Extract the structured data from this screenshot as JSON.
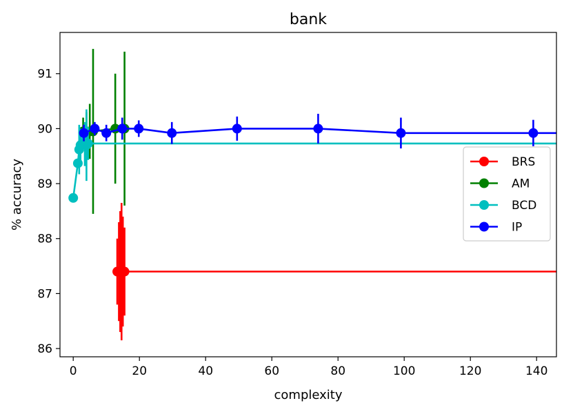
{
  "chart_data": {
    "type": "line",
    "title": "bank",
    "xlabel": "complexity",
    "ylabel": "% accuracy",
    "xlim": [
      -4,
      146
    ],
    "ylim": [
      85.85,
      91.75
    ],
    "xticks": [
      0,
      20,
      40,
      60,
      80,
      100,
      120,
      140
    ],
    "yticks": [
      86,
      87,
      88,
      89,
      90,
      91
    ],
    "grid": false,
    "legend_position": "center-right",
    "series": [
      {
        "name": "BRS",
        "color": "#ff0000",
        "points": [
          {
            "x": 13.3,
            "y": 87.4,
            "err": 0.6
          },
          {
            "x": 13.8,
            "y": 87.4,
            "err": 0.9
          },
          {
            "x": 14.2,
            "y": 87.4,
            "err": 1.1
          },
          {
            "x": 14.6,
            "y": 87.4,
            "err": 1.25
          },
          {
            "x": 15.0,
            "y": 87.4,
            "err": 1.0
          },
          {
            "x": 15.5,
            "y": 87.4,
            "err": 0.8
          }
        ],
        "extend_to_x": 146
      },
      {
        "name": "AM",
        "color": "#008000",
        "points": [
          {
            "x": 3.0,
            "y": 89.95,
            "err": 0.25
          },
          {
            "x": 4.0,
            "y": 89.95,
            "err": 0.35
          },
          {
            "x": 5.0,
            "y": 89.95,
            "err": 0.5
          },
          {
            "x": 6.0,
            "y": 89.95,
            "err": 1.5
          },
          {
            "x": 12.7,
            "y": 90.0,
            "err": 1.0
          },
          {
            "x": 15.5,
            "y": 90.0,
            "err": 1.4
          }
        ],
        "extend_to_x": 16
      },
      {
        "name": "BCD",
        "color": "#00bfbf",
        "points": [
          {
            "x": 0.0,
            "y": 88.74,
            "err": 0.0
          },
          {
            "x": 1.4,
            "y": 89.37,
            "err": 0.05
          },
          {
            "x": 1.8,
            "y": 89.62,
            "err": 0.45
          },
          {
            "x": 2.2,
            "y": 89.7,
            "err": 0.3
          },
          {
            "x": 2.8,
            "y": 89.74,
            "err": 0.15
          },
          {
            "x": 3.5,
            "y": 89.72,
            "err": 0.4
          },
          {
            "x": 4.0,
            "y": 89.7,
            "err": 0.65
          },
          {
            "x": 4.5,
            "y": 89.73,
            "err": 0.3
          }
        ],
        "extend_to_x": 146
      },
      {
        "name": "IP",
        "color": "#0000ff",
        "points": [
          {
            "x": 3.2,
            "y": 89.92,
            "err": 0.15
          },
          {
            "x": 6.5,
            "y": 90.0,
            "err": 0.12
          },
          {
            "x": 10.0,
            "y": 89.92,
            "err": 0.15
          },
          {
            "x": 14.8,
            "y": 90.0,
            "err": 0.2
          },
          {
            "x": 19.8,
            "y": 90.0,
            "err": 0.15
          },
          {
            "x": 29.8,
            "y": 89.92,
            "err": 0.2
          },
          {
            "x": 49.5,
            "y": 90.0,
            "err": 0.22
          },
          {
            "x": 74.0,
            "y": 90.0,
            "err": 0.27
          },
          {
            "x": 99.0,
            "y": 89.92,
            "err": 0.28
          },
          {
            "x": 139.0,
            "y": 89.92,
            "err": 0.24
          }
        ],
        "extend_to_x": 146
      }
    ]
  }
}
